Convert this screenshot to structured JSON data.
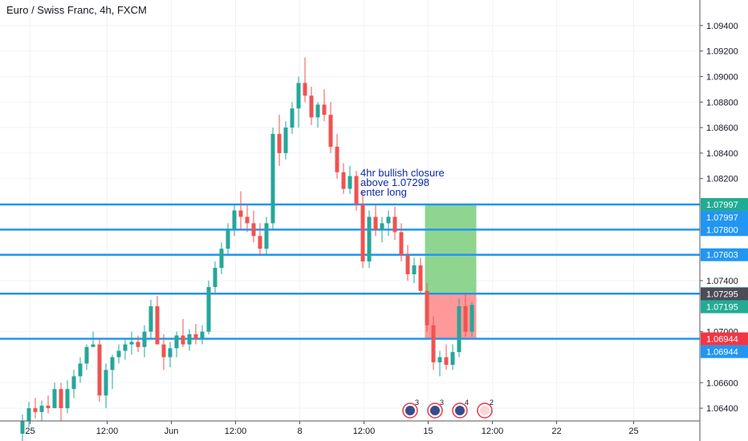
{
  "chart_data": {
    "type": "candlestick",
    "title": "Euro / Swiss Franc, 4h, FXCM",
    "ylim": [
      1.063,
      1.096
    ],
    "y_ticks": [
      "1.09400",
      "1.09200",
      "1.09000",
      "1.08800",
      "1.08600",
      "1.08400",
      "1.08200",
      "1.07400",
      "1.07000",
      "1.06600",
      "1.06400"
    ],
    "x_labels": [
      {
        "i": 1,
        "label": "25"
      },
      {
        "i": 13,
        "label": "12:00"
      },
      {
        "i": 23,
        "label": "Jun"
      },
      {
        "i": 33,
        "label": "12:00"
      },
      {
        "i": 43,
        "label": "8"
      },
      {
        "i": 53,
        "label": "12:00"
      },
      {
        "i": 63,
        "label": "15"
      },
      {
        "i": 73,
        "label": "12:00"
      },
      {
        "i": 83,
        "label": "22"
      },
      {
        "i": 95,
        "label": "25"
      }
    ],
    "candles": [
      [
        1.062,
        1.0635,
        1.061,
        1.063
      ],
      [
        1.063,
        1.0645,
        1.0625,
        1.064
      ],
      [
        1.064,
        1.0648,
        1.0632,
        1.0637
      ],
      [
        1.0637,
        1.0646,
        1.063,
        1.0642
      ],
      [
        1.0642,
        1.065,
        1.0636,
        1.064
      ],
      [
        1.064,
        1.066,
        1.064,
        1.0655
      ],
      [
        1.0655,
        1.066,
        1.063,
        1.064
      ],
      [
        1.064,
        1.0662,
        1.0636,
        1.0655
      ],
      [
        1.0655,
        1.067,
        1.0648,
        1.0665
      ],
      [
        1.0665,
        1.068,
        1.066,
        1.0675
      ],
      [
        1.0675,
        1.069,
        1.067,
        1.0688
      ],
      [
        1.0688,
        1.07,
        1.0688,
        1.069
      ],
      [
        1.069,
        1.0695,
        1.0645,
        1.065
      ],
      [
        1.065,
        1.0675,
        1.064,
        1.067
      ],
      [
        1.067,
        1.0682,
        1.0655,
        1.068
      ],
      [
        1.068,
        1.069,
        1.0675,
        1.0685
      ],
      [
        1.0685,
        1.0695,
        1.0678,
        1.069
      ],
      [
        1.069,
        1.07,
        1.0682,
        1.0692
      ],
      [
        1.0692,
        1.0697,
        1.0684,
        1.0688
      ],
      [
        1.0688,
        1.0705,
        1.068,
        1.07
      ],
      [
        1.07,
        1.0725,
        1.0695,
        1.072
      ],
      [
        1.072,
        1.0728,
        1.069,
        1.069
      ],
      [
        1.069,
        1.0698,
        1.067,
        1.068
      ],
      [
        1.068,
        1.0692,
        1.0672,
        1.0687
      ],
      [
        1.0687,
        1.07,
        1.068,
        1.0697
      ],
      [
        1.0697,
        1.071,
        1.0688,
        1.069
      ],
      [
        1.069,
        1.0702,
        1.0685,
        1.0698
      ],
      [
        1.0698,
        1.0706,
        1.069,
        1.0694
      ],
      [
        1.0694,
        1.0705,
        1.069,
        1.07
      ],
      [
        1.07,
        1.074,
        1.0698,
        1.0735
      ],
      [
        1.0735,
        1.0755,
        1.073,
        1.075
      ],
      [
        1.075,
        1.077,
        1.0745,
        1.0765
      ],
      [
        1.0765,
        1.0785,
        1.076,
        1.078
      ],
      [
        1.078,
        1.08,
        1.0775,
        1.0795
      ],
      [
        1.0795,
        1.081,
        1.078,
        1.079
      ],
      [
        1.079,
        1.08,
        1.0778,
        1.0785
      ],
      [
        1.0785,
        1.0795,
        1.077,
        1.0775
      ],
      [
        1.0775,
        1.0785,
        1.076,
        1.0765
      ],
      [
        1.0765,
        1.079,
        1.076,
        1.0785
      ],
      [
        1.0785,
        1.086,
        1.078,
        1.0855
      ],
      [
        1.0855,
        1.087,
        1.083,
        1.084
      ],
      [
        1.084,
        1.0865,
        1.0835,
        1.086
      ],
      [
        1.086,
        1.088,
        1.0855,
        1.0875
      ],
      [
        1.0875,
        1.09,
        1.086,
        1.0895
      ],
      [
        1.0895,
        1.0915,
        1.088,
        1.0885
      ],
      [
        1.0885,
        1.0892,
        1.0862,
        1.0868
      ],
      [
        1.0868,
        1.088,
        1.086,
        1.0878
      ],
      [
        1.0878,
        1.089,
        1.0865,
        1.087
      ],
      [
        1.087,
        1.088,
        1.084,
        1.0845
      ],
      [
        1.0845,
        1.0855,
        1.082,
        1.0825
      ],
      [
        1.0825,
        1.0832,
        1.0808,
        1.0812
      ],
      [
        1.0812,
        1.083,
        1.0808,
        1.0822
      ],
      [
        1.0822,
        1.0826,
        1.0795,
        1.08
      ],
      [
        1.08,
        1.081,
        1.075,
        1.0755
      ],
      [
        1.0755,
        1.0795,
        1.075,
        1.079
      ],
      [
        1.079,
        1.08,
        1.0775,
        1.078
      ],
      [
        1.078,
        1.079,
        1.077,
        1.0785
      ],
      [
        1.0785,
        1.0795,
        1.0775,
        1.079
      ],
      [
        1.079,
        1.0798,
        1.0772,
        1.0778
      ],
      [
        1.0778,
        1.0785,
        1.0755,
        1.076
      ],
      [
        1.076,
        1.0768,
        1.074,
        1.0745
      ],
      [
        1.0745,
        1.0758,
        1.0738,
        1.0752
      ],
      [
        1.0752,
        1.0758,
        1.073,
        1.0732
      ],
      [
        1.0732,
        1.0738,
        1.07,
        1.0705
      ],
      [
        1.0705,
        1.0712,
        1.067,
        1.0676
      ],
      [
        1.0676,
        1.0685,
        1.0665,
        1.068
      ],
      [
        1.068,
        1.069,
        1.067,
        1.0674
      ],
      [
        1.0674,
        1.069,
        1.067,
        1.0684
      ],
      [
        1.0684,
        1.0726,
        1.068,
        1.072
      ],
      [
        1.072,
        1.073,
        1.0696,
        1.07
      ],
      [
        1.07,
        1.0723,
        1.0696,
        1.0721
      ]
    ],
    "horizontal_levels": [
      1.07997,
      1.078,
      1.07603,
      1.07298,
      1.06944
    ],
    "current_price": 1.07295,
    "price_tags": [
      {
        "value": 1.07997,
        "label": "1.07997",
        "color": "#22ab94"
      },
      {
        "value": 1.07997,
        "label": "1.07997",
        "color": "#2196f3",
        "offset": 1
      },
      {
        "value": 1.078,
        "label": "1.07800",
        "color": "#2196f3"
      },
      {
        "value": 1.07603,
        "label": "1.07603",
        "color": "#2196f3"
      },
      {
        "value": 1.07298,
        "label": "1.07298",
        "color": "#2196f3"
      },
      {
        "value": 1.07295,
        "label": "1.07295",
        "color": "#4a4d57"
      },
      {
        "value": 1.07195,
        "label": "1.07195",
        "color": "#22ab94"
      },
      {
        "value": 1.06944,
        "label": "1.06944",
        "color": "#f23645"
      },
      {
        "value": 1.06944,
        "label": "1.06944",
        "color": "#2196f3",
        "offset": 1
      }
    ],
    "position": {
      "entry": 1.07298,
      "target": 1.07997,
      "stop": 1.06944,
      "start_i": 63,
      "end_i": 71
    },
    "annotation": [
      "4hr bullish closure",
      "above 1.07298",
      "enter long"
    ],
    "events": [
      {
        "count": "3"
      },
      {
        "count": "3"
      },
      {
        "count": "4"
      },
      {
        "count": "2"
      }
    ]
  },
  "colors": {
    "up": "#26a69a",
    "down": "#ef5350",
    "grid": "#f0f3fa",
    "level_line": "#2196f3",
    "profit_zone": "#8fd48f",
    "loss_zone": "#ff9999",
    "text": "#131722",
    "annotation": "#0b2aa8",
    "axis": "#555555"
  }
}
